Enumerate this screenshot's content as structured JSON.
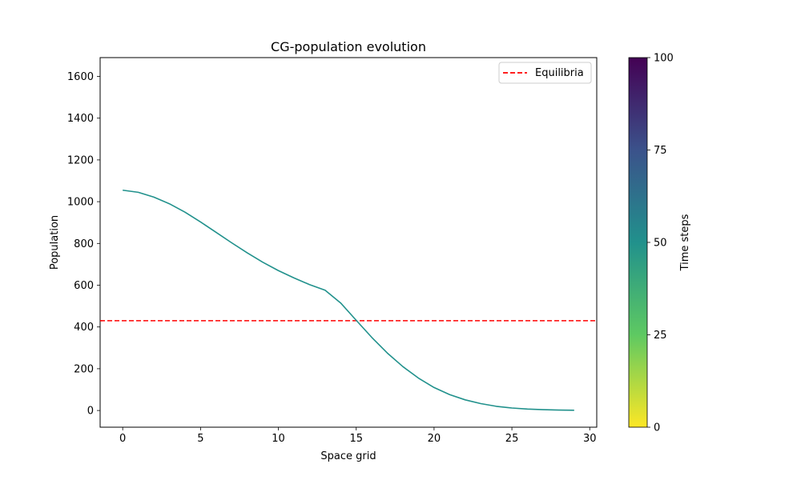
{
  "chart_data": {
    "type": "line",
    "title": "CG-population evolution",
    "xlabel": "Space grid",
    "ylabel": "Population",
    "xlim": [
      -1.45,
      30.45
    ],
    "ylim": [
      -80,
      1690
    ],
    "xticks": [
      0,
      5,
      10,
      15,
      20,
      25,
      30
    ],
    "yticks": [
      0,
      200,
      400,
      600,
      800,
      1000,
      1200,
      1400,
      1600
    ],
    "grid": false,
    "legend_placement": "top-right",
    "series": [
      {
        "color": "#21918c",
        "x": [
          0,
          1,
          2,
          3,
          4,
          5,
          6,
          7,
          8,
          9,
          10,
          11,
          12,
          13,
          14,
          15,
          16,
          17,
          18,
          19,
          20,
          21,
          22,
          23,
          24,
          25,
          26,
          27,
          28,
          29
        ],
        "values": [
          1055,
          1045,
          1022,
          990,
          950,
          903,
          853,
          803,
          755,
          710,
          670,
          635,
          603,
          576,
          515,
          432,
          350,
          275,
          210,
          155,
          110,
          76,
          51,
          33,
          20,
          12,
          7,
          4,
          2,
          1
        ]
      }
    ],
    "reference_lines": [
      {
        "label": "Equilibria",
        "y": 430,
        "color": "#ff0000",
        "style": "dashed"
      }
    ],
    "colorbar": {
      "label": "Time steps",
      "min": 0,
      "max": 100,
      "ticks": [
        0,
        25,
        50,
        75,
        100
      ],
      "colormap": "viridis_r",
      "stops": [
        "#fde725",
        "#5ec962",
        "#21918c",
        "#3b528b",
        "#440154"
      ]
    }
  }
}
